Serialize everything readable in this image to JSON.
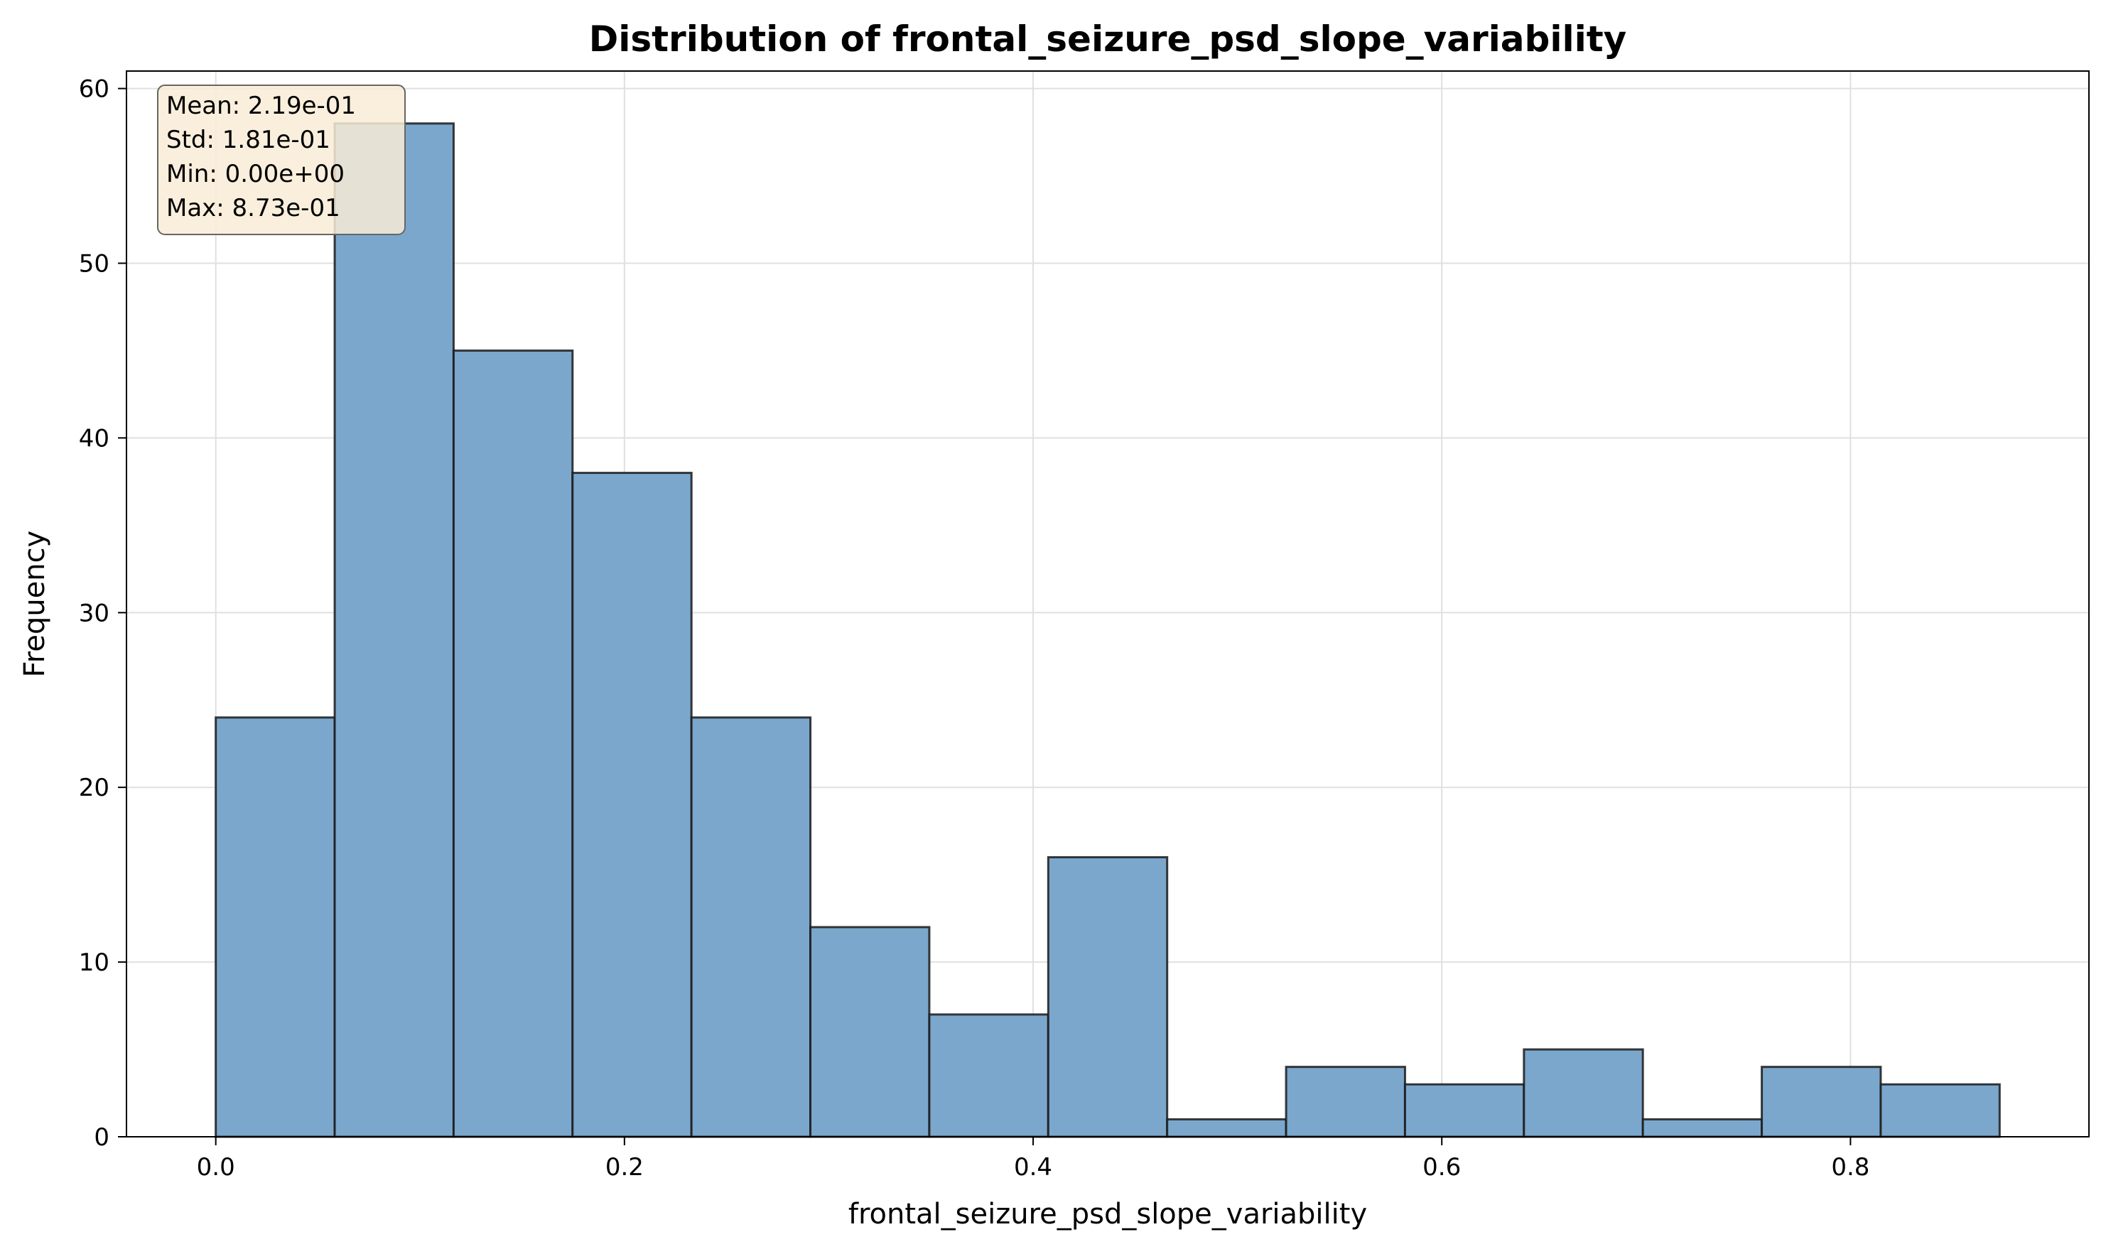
{
  "chart_data": {
    "type": "histogram",
    "title": "Distribution of frontal_seizure_psd_slope_variability",
    "xlabel": "frontal_seizure_psd_slope_variability",
    "ylabel": "Frequency",
    "xlim": [
      -0.0437,
      0.9167
    ],
    "ylim": [
      0,
      61
    ],
    "grid": true,
    "bin_edges": [
      0.0,
      0.0582,
      0.1164,
      0.1746,
      0.2328,
      0.291,
      0.3492,
      0.4074,
      0.4656,
      0.5238,
      0.582,
      0.6402,
      0.6984,
      0.7566,
      0.8148,
      0.873
    ],
    "values": [
      24,
      58,
      45,
      38,
      24,
      12,
      7,
      16,
      1,
      4,
      3,
      5,
      1,
      4,
      3
    ],
    "x_ticks": [
      {
        "value": 0.0,
        "label": "0.0"
      },
      {
        "value": 0.2,
        "label": "0.2"
      },
      {
        "value": 0.4,
        "label": "0.4"
      },
      {
        "value": 0.6,
        "label": "0.6"
      },
      {
        "value": 0.8,
        "label": "0.8"
      }
    ],
    "y_ticks": [
      {
        "value": 0,
        "label": "0"
      },
      {
        "value": 10,
        "label": "10"
      },
      {
        "value": 20,
        "label": "20"
      },
      {
        "value": 30,
        "label": "30"
      },
      {
        "value": 40,
        "label": "40"
      },
      {
        "value": 50,
        "label": "50"
      },
      {
        "value": 60,
        "label": "60"
      }
    ],
    "stats_box": {
      "placement": "top-left",
      "lines": [
        "Mean: 2.19e-01",
        "Std: 1.81e-01",
        "Min: 0.00e+00",
        "Max: 8.73e-01"
      ]
    },
    "colors": {
      "bar_fill": "#7ba7cc",
      "bar_edge": "#1a1a1a",
      "grid": "#e0e0e0",
      "stats_box_fill": "#f8ecd6",
      "stats_box_edge": "#666666"
    }
  }
}
